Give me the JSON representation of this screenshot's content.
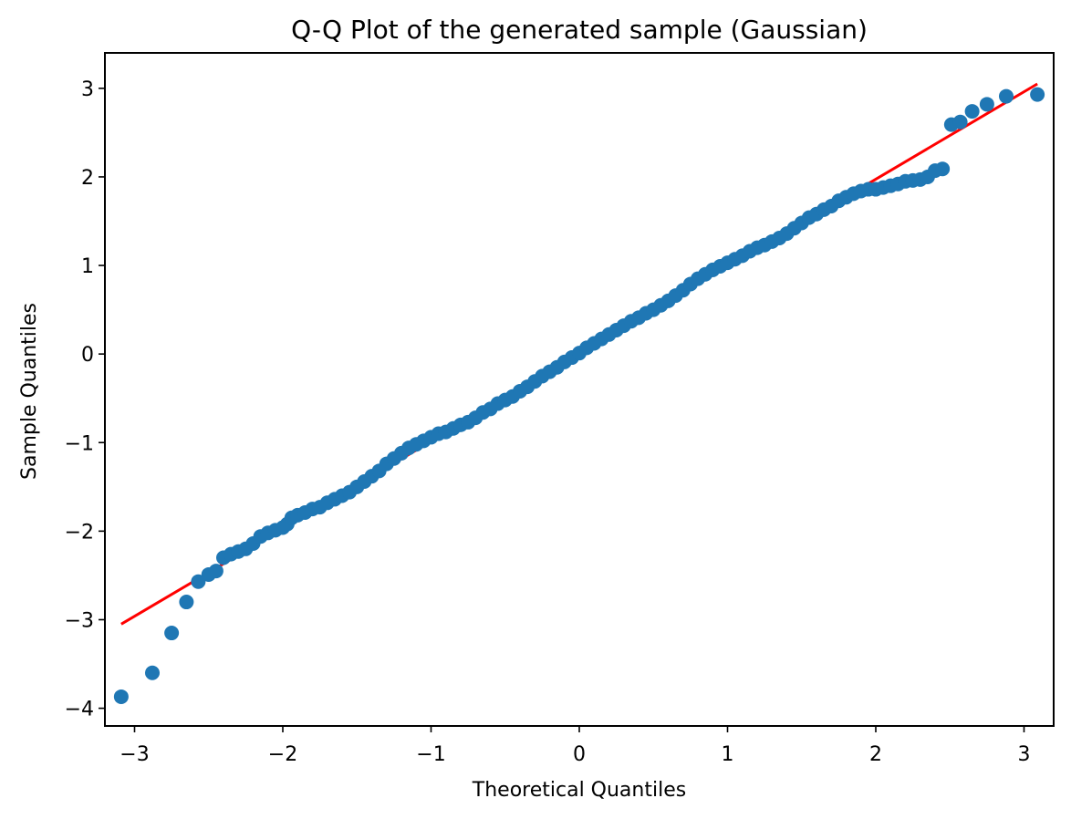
{
  "chart_data": {
    "type": "scatter",
    "title": "Q-Q Plot of the generated sample (Gaussian)",
    "xlabel": "Theoretical Quantiles",
    "ylabel": "Sample Quantiles",
    "xlim": [
      -3.2,
      3.2
    ],
    "ylim": [
      -4.2,
      3.4
    ],
    "xticks": [
      -3,
      -2,
      -1,
      0,
      1,
      2,
      3
    ],
    "yticks": [
      -4,
      -3,
      -2,
      -1,
      0,
      1,
      2,
      3
    ],
    "xtick_labels": [
      "−3",
      "−2",
      "−1",
      "0",
      "1",
      "2",
      "3"
    ],
    "ytick_labels": [
      "−4",
      "−3",
      "−2",
      "−1",
      "0",
      "1",
      "2",
      "3"
    ],
    "grid": false,
    "series": [
      {
        "type": "scatter",
        "color": "#1f77b4",
        "points": [
          [
            -3.09,
            -3.87
          ],
          [
            -2.88,
            -3.6
          ],
          [
            -2.75,
            -3.15
          ],
          [
            -2.65,
            -2.8
          ],
          [
            -2.57,
            -2.57
          ],
          [
            -2.5,
            -2.49
          ],
          [
            -2.45,
            -2.45
          ],
          [
            -2.4,
            -2.3
          ],
          [
            -2.35,
            -2.26
          ],
          [
            -2.3,
            -2.23
          ],
          [
            -2.25,
            -2.2
          ],
          [
            -2.2,
            -2.14
          ],
          [
            -2.15,
            -2.06
          ],
          [
            -2.1,
            -2.02
          ],
          [
            -2.05,
            -1.99
          ],
          [
            -2.0,
            -1.96
          ],
          [
            -1.97,
            -1.92
          ],
          [
            -1.94,
            -1.85
          ],
          [
            -1.9,
            -1.82
          ],
          [
            -1.85,
            -1.79
          ],
          [
            -1.8,
            -1.75
          ],
          [
            -1.75,
            -1.73
          ],
          [
            -1.7,
            -1.68
          ],
          [
            -1.65,
            -1.64
          ],
          [
            -1.6,
            -1.6
          ],
          [
            -1.55,
            -1.56
          ],
          [
            -1.5,
            -1.5
          ],
          [
            -1.45,
            -1.44
          ],
          [
            -1.4,
            -1.38
          ],
          [
            -1.35,
            -1.32
          ],
          [
            -1.3,
            -1.24
          ],
          [
            -1.25,
            -1.18
          ],
          [
            -1.2,
            -1.12
          ],
          [
            -1.15,
            -1.06
          ],
          [
            -1.1,
            -1.02
          ],
          [
            -1.05,
            -0.98
          ],
          [
            -1.0,
            -0.94
          ],
          [
            -0.95,
            -0.9
          ],
          [
            -0.9,
            -0.88
          ],
          [
            -0.85,
            -0.84
          ],
          [
            -0.8,
            -0.8
          ],
          [
            -0.75,
            -0.77
          ],
          [
            -0.7,
            -0.72
          ],
          [
            -0.65,
            -0.66
          ],
          [
            -0.6,
            -0.62
          ],
          [
            -0.55,
            -0.56
          ],
          [
            -0.5,
            -0.52
          ],
          [
            -0.45,
            -0.48
          ],
          [
            -0.4,
            -0.42
          ],
          [
            -0.35,
            -0.37
          ],
          [
            -0.3,
            -0.31
          ],
          [
            -0.25,
            -0.25
          ],
          [
            -0.2,
            -0.2
          ],
          [
            -0.15,
            -0.15
          ],
          [
            -0.1,
            -0.09
          ],
          [
            -0.05,
            -0.04
          ],
          [
            0.0,
            0.01
          ],
          [
            0.05,
            0.07
          ],
          [
            0.1,
            0.12
          ],
          [
            0.15,
            0.17
          ],
          [
            0.2,
            0.22
          ],
          [
            0.25,
            0.27
          ],
          [
            0.3,
            0.32
          ],
          [
            0.35,
            0.37
          ],
          [
            0.4,
            0.41
          ],
          [
            0.45,
            0.46
          ],
          [
            0.5,
            0.5
          ],
          [
            0.55,
            0.55
          ],
          [
            0.6,
            0.6
          ],
          [
            0.65,
            0.66
          ],
          [
            0.7,
            0.72
          ],
          [
            0.75,
            0.79
          ],
          [
            0.8,
            0.85
          ],
          [
            0.85,
            0.9
          ],
          [
            0.9,
            0.95
          ],
          [
            0.95,
            0.99
          ],
          [
            1.0,
            1.03
          ],
          [
            1.05,
            1.07
          ],
          [
            1.1,
            1.11
          ],
          [
            1.15,
            1.16
          ],
          [
            1.2,
            1.2
          ],
          [
            1.25,
            1.23
          ],
          [
            1.3,
            1.27
          ],
          [
            1.35,
            1.31
          ],
          [
            1.4,
            1.36
          ],
          [
            1.45,
            1.42
          ],
          [
            1.5,
            1.48
          ],
          [
            1.55,
            1.54
          ],
          [
            1.6,
            1.58
          ],
          [
            1.65,
            1.63
          ],
          [
            1.7,
            1.67
          ],
          [
            1.75,
            1.73
          ],
          [
            1.8,
            1.77
          ],
          [
            1.85,
            1.81
          ],
          [
            1.9,
            1.84
          ],
          [
            1.95,
            1.86
          ],
          [
            2.0,
            1.86
          ],
          [
            2.05,
            1.88
          ],
          [
            2.1,
            1.9
          ],
          [
            2.15,
            1.92
          ],
          [
            2.2,
            1.95
          ],
          [
            2.25,
            1.96
          ],
          [
            2.3,
            1.97
          ],
          [
            2.35,
            2.0
          ],
          [
            2.4,
            2.07
          ],
          [
            2.45,
            2.09
          ],
          [
            2.51,
            2.59
          ],
          [
            2.57,
            2.62
          ],
          [
            2.65,
            2.74
          ],
          [
            2.75,
            2.82
          ],
          [
            2.88,
            2.91
          ],
          [
            3.09,
            2.93
          ]
        ]
      },
      {
        "type": "line",
        "color": "#ff0000",
        "points": [
          [
            -3.09,
            -3.05
          ],
          [
            3.09,
            3.05
          ]
        ]
      }
    ]
  }
}
